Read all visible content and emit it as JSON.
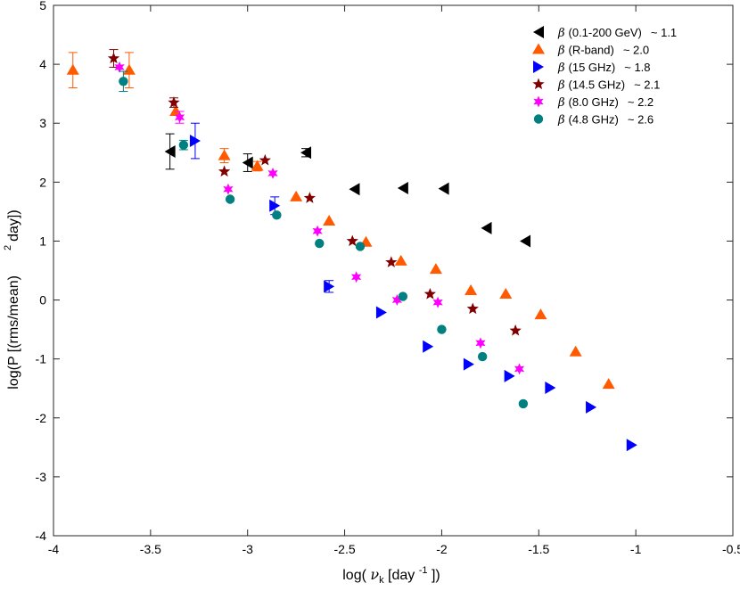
{
  "chart_data": {
    "type": "scatter",
    "title": "",
    "xlabel": {
      "prefix": "log( ",
      "symbol": "ν",
      "sub": "k",
      "mid": " [day ",
      "sup": "-1",
      "suffix": " ])"
    },
    "ylabel": {
      "text": "log(P [(rms/mean)",
      "sup": "2",
      "suffix": "day])"
    },
    "xlim": [
      -4,
      -0.5
    ],
    "ylim": [
      -4,
      5
    ],
    "xticks": [
      -4,
      -3.5,
      -3,
      -2.5,
      -2,
      -1.5,
      -1,
      -0.5
    ],
    "yticks": [
      -4,
      -3,
      -2,
      -1,
      0,
      1,
      2,
      3,
      4,
      5
    ],
    "xtick_labels": [
      "-4",
      "-3.5",
      "-3",
      "-2.5",
      "-2",
      "-1.5",
      "-1",
      "-0.5"
    ],
    "ytick_labels": [
      "-4",
      "-3",
      "-2",
      "-1",
      "0",
      "1",
      "2",
      "3",
      "4",
      "5"
    ],
    "grid": false,
    "legend_position": "top-right",
    "series": [
      {
        "name": "(0.1-200 GeV)",
        "beta_symbol": "β",
        "beta_text": "~ 1.1",
        "marker": "triangle-left",
        "color": "#000000",
        "points": [
          {
            "x": -3.4,
            "y": 2.52,
            "err": 0.3
          },
          {
            "x": -3.0,
            "y": 2.33,
            "err": 0.15
          },
          {
            "x": -2.7,
            "y": 2.5,
            "err": 0.07
          },
          {
            "x": -2.45,
            "y": 1.88
          },
          {
            "x": -2.2,
            "y": 1.9
          },
          {
            "x": -1.99,
            "y": 1.89
          },
          {
            "x": -1.77,
            "y": 1.22
          },
          {
            "x": -1.57,
            "y": 1.0
          }
        ]
      },
      {
        "name": "(R-band)",
        "beta_symbol": "β",
        "beta_text": "~ 2.0",
        "marker": "triangle-up",
        "color": "#ff5a00",
        "points": [
          {
            "x": -3.9,
            "y": 3.9,
            "err": 0.3
          },
          {
            "x": -3.61,
            "y": 3.9,
            "err": 0.3
          },
          {
            "x": -3.37,
            "y": 3.2
          },
          {
            "x": -3.12,
            "y": 2.45,
            "err": 0.12
          },
          {
            "x": -2.95,
            "y": 2.27,
            "err": 0.08
          },
          {
            "x": -2.75,
            "y": 1.75
          },
          {
            "x": -2.58,
            "y": 1.34
          },
          {
            "x": -2.39,
            "y": 0.98
          },
          {
            "x": -2.21,
            "y": 0.66
          },
          {
            "x": -2.03,
            "y": 0.52
          },
          {
            "x": -1.85,
            "y": 0.16
          },
          {
            "x": -1.67,
            "y": 0.1
          },
          {
            "x": -1.49,
            "y": -0.25
          },
          {
            "x": -1.31,
            "y": -0.88
          },
          {
            "x": -1.14,
            "y": -1.43
          }
        ]
      },
      {
        "name": "(15 GHz)",
        "beta_symbol": "β",
        "beta_text": "~ 1.8",
        "marker": "triangle-right",
        "color": "#0000ff",
        "points": [
          {
            "x": -3.27,
            "y": 2.7,
            "err": 0.3
          },
          {
            "x": -2.86,
            "y": 1.6,
            "err": 0.15
          },
          {
            "x": -2.58,
            "y": 0.23,
            "err": 0.1
          },
          {
            "x": -2.31,
            "y": -0.21
          },
          {
            "x": -2.07,
            "y": -0.79
          },
          {
            "x": -1.86,
            "y": -1.09
          },
          {
            "x": -1.65,
            "y": -1.29
          },
          {
            "x": -1.44,
            "y": -1.49
          },
          {
            "x": -1.23,
            "y": -1.82
          },
          {
            "x": -1.02,
            "y": -2.46
          }
        ]
      },
      {
        "name": "(14.5 GHz)",
        "beta_symbol": "β",
        "beta_text": "~ 2.1",
        "marker": "star5",
        "color": "#800000",
        "points": [
          {
            "x": -3.69,
            "y": 4.1,
            "err": 0.15
          },
          {
            "x": -3.38,
            "y": 3.35,
            "err": 0.08
          },
          {
            "x": -3.12,
            "y": 2.18
          },
          {
            "x": -2.91,
            "y": 2.37
          },
          {
            "x": -2.68,
            "y": 1.73
          },
          {
            "x": -2.46,
            "y": 1.0
          },
          {
            "x": -2.26,
            "y": 0.64
          },
          {
            "x": -2.06,
            "y": 0.1
          },
          {
            "x": -1.84,
            "y": -0.15
          },
          {
            "x": -1.62,
            "y": -0.52
          }
        ]
      },
      {
        "name": "(8.0 GHz)",
        "beta_symbol": "β",
        "beta_text": "~ 2.2",
        "marker": "star6",
        "color": "#ff00ff",
        "points": [
          {
            "x": -3.66,
            "y": 3.95
          },
          {
            "x": -3.35,
            "y": 3.1,
            "err": 0.1
          },
          {
            "x": -3.1,
            "y": 1.88
          },
          {
            "x": -2.87,
            "y": 2.15
          },
          {
            "x": -2.64,
            "y": 1.17
          },
          {
            "x": -2.44,
            "y": 0.39
          },
          {
            "x": -2.23,
            "y": 0.0
          },
          {
            "x": -2.02,
            "y": -0.04
          },
          {
            "x": -1.8,
            "y": -0.73
          },
          {
            "x": -1.6,
            "y": -1.17
          }
        ]
      },
      {
        "name": "(4.8 GHz)",
        "beta_symbol": "β",
        "beta_text": "~ 2.6",
        "marker": "circle",
        "color": "#008080",
        "points": [
          {
            "x": -3.64,
            "y": 3.71,
            "err": 0.17
          },
          {
            "x": -3.33,
            "y": 2.63,
            "err": 0.08
          },
          {
            "x": -3.09,
            "y": 1.71
          },
          {
            "x": -2.85,
            "y": 1.44
          },
          {
            "x": -2.63,
            "y": 0.96
          },
          {
            "x": -2.42,
            "y": 0.91
          },
          {
            "x": -2.2,
            "y": 0.06
          },
          {
            "x": -2.0,
            "y": -0.5
          },
          {
            "x": -1.79,
            "y": -0.96
          },
          {
            "x": -1.58,
            "y": -1.76
          }
        ]
      }
    ]
  }
}
